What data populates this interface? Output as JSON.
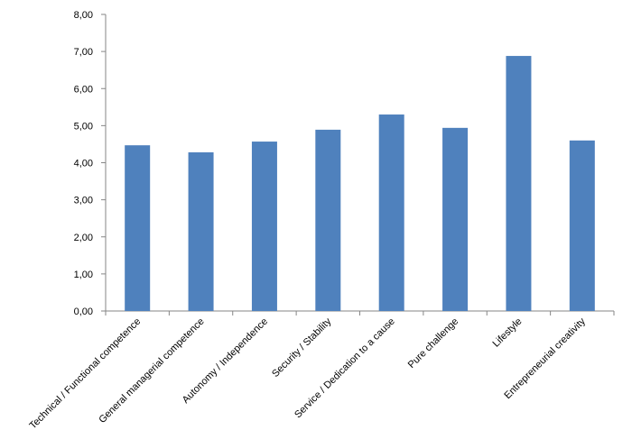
{
  "chart_data": {
    "type": "bar",
    "categories": [
      "Technical / Functional competence",
      "General managerial competence",
      "Autonomy / Independence",
      "Security / Stability",
      "Service / Dedication to a cause",
      "Pure challenge",
      "Lifestyle",
      "Entrepreneurial creativity"
    ],
    "values": [
      4.47,
      4.28,
      4.57,
      4.89,
      5.3,
      4.94,
      6.88,
      4.6
    ],
    "color": "#4f81bd",
    "ylim": [
      0,
      8
    ],
    "yticks": [
      {
        "value": 0,
        "label": "0,00"
      },
      {
        "value": 1,
        "label": "1,00"
      },
      {
        "value": 2,
        "label": "2,00"
      },
      {
        "value": 3,
        "label": "3,00"
      },
      {
        "value": 4,
        "label": "4,00"
      },
      {
        "value": 5,
        "label": "5,00"
      },
      {
        "value": 6,
        "label": "6,00"
      },
      {
        "value": 7,
        "label": "7,00"
      },
      {
        "value": 8,
        "label": "8,00"
      }
    ],
    "grid": false
  }
}
